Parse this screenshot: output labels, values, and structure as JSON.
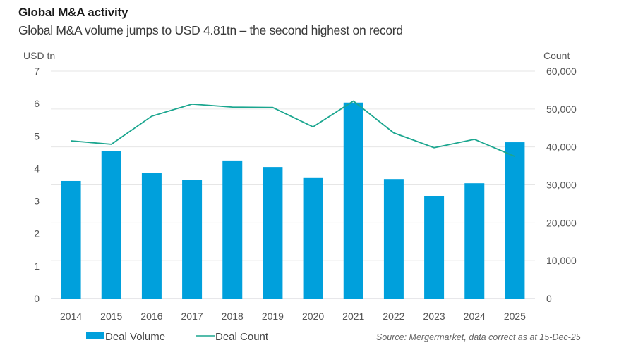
{
  "header": {
    "title": "Global M&A activity",
    "subtitle": "Global M&A volume jumps to USD 4.81tn – the second highest on record"
  },
  "chart_data": {
    "type": "bar",
    "title": "Global M&A activity",
    "subtitle": "Global M&A volume jumps to USD 4.81tn – the second highest on record",
    "categories": [
      "2014",
      "2015",
      "2016",
      "2017",
      "2018",
      "2019",
      "2020",
      "2021",
      "2022",
      "2023",
      "2024",
      "2025"
    ],
    "series": [
      {
        "name": "Deal Volume",
        "type": "bar",
        "axis": "left",
        "color": "#00A0DC",
        "values": [
          3.62,
          4.53,
          3.86,
          3.66,
          4.25,
          4.05,
          3.71,
          6.03,
          3.68,
          3.16,
          3.55,
          4.81
        ]
      },
      {
        "name": "Deal Count",
        "type": "line",
        "axis": "right",
        "color": "#1BA68F",
        "values": [
          41600,
          40700,
          48100,
          51300,
          50500,
          50400,
          45300,
          52100,
          43700,
          39800,
          42000,
          37500
        ]
      }
    ],
    "left_axis": {
      "label": "USD tn",
      "range": [
        0,
        7
      ],
      "ticks": [
        "0",
        "1",
        "2",
        "3",
        "4",
        "5",
        "6",
        "7"
      ]
    },
    "right_axis": {
      "label": "Count",
      "range": [
        0,
        60000
      ],
      "ticks": [
        "0",
        "10,000",
        "20,000",
        "30,000",
        "40,000",
        "50,000",
        "60,000"
      ]
    },
    "grid": true,
    "legend": {
      "position": "bottom-left",
      "entries": [
        "Deal Volume",
        "Deal Count"
      ]
    },
    "source": "Source: Mergermarket, data correct as at 15-Dec-25"
  }
}
